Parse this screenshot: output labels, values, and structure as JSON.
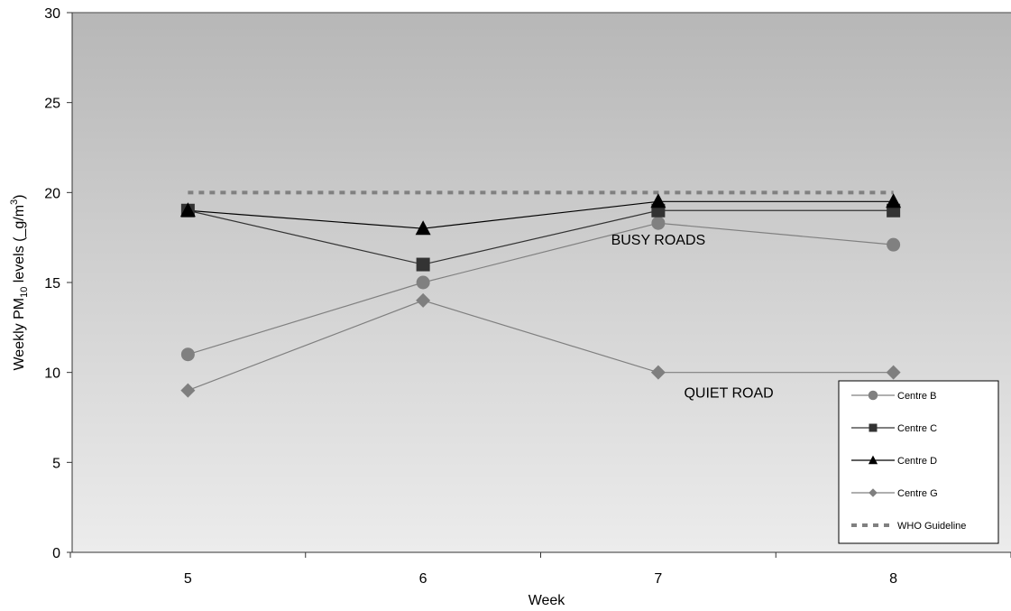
{
  "chart_data": {
    "type": "line",
    "categories": [
      "5",
      "6",
      "7",
      "8"
    ],
    "xlabel": "Week",
    "ylabel": "Weekly PM10 levels (_g/m3)",
    "ylabel_parts": {
      "pre": "Weekly PM",
      "sub": "10",
      "mid": " levels (_g/m",
      "sup": "3",
      "post": ")"
    },
    "ylim": [
      0,
      30
    ],
    "yticks": [
      "0",
      "5",
      "10",
      "15",
      "20",
      "25",
      "30"
    ],
    "grid": false,
    "legend": "bottom-right",
    "series": [
      {
        "name": "Centre B",
        "values": [
          11,
          15,
          18.3,
          17.1
        ],
        "marker": "circle",
        "color": "#808080",
        "line": "#808080"
      },
      {
        "name": "Centre C",
        "values": [
          19,
          16,
          19,
          19
        ],
        "marker": "square",
        "color": "#333333",
        "line": "#333333"
      },
      {
        "name": "Centre D",
        "values": [
          19,
          18,
          19.5,
          19.5
        ],
        "marker": "triangle",
        "color": "#000000",
        "line": "#000000"
      },
      {
        "name": "Centre G",
        "values": [
          9,
          14,
          10,
          10
        ],
        "marker": "diamond",
        "color": "#7f7f7f",
        "line": "#7f7f7f"
      },
      {
        "name": "WHO Guideline",
        "values": [
          20,
          20,
          20,
          20
        ],
        "marker": "none",
        "color": "#808080",
        "line": "#808080",
        "dashed": true
      }
    ],
    "annotations": [
      {
        "text": "BUSY ROADS",
        "x": 7,
        "y": 17.1
      },
      {
        "text": "QUIET ROAD",
        "x": 7.3,
        "y": 8.6
      }
    ]
  }
}
